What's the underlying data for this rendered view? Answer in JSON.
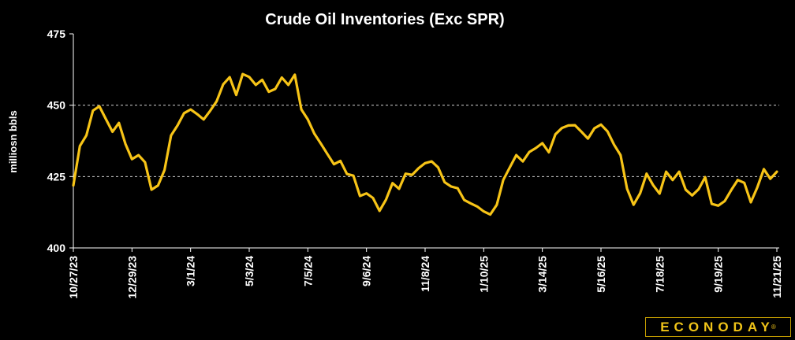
{
  "chart_data": {
    "type": "line",
    "title": "Crude Oil Inventories (Exc SPR)",
    "xlabel": "",
    "ylabel": "milliosn bbls",
    "ylim": [
      400,
      475
    ],
    "yticks": [
      400,
      425,
      450,
      475
    ],
    "gridlines": [
      425,
      450
    ],
    "grid": "dashed horizontal at 425 and 450",
    "legend": "none",
    "xtick_labels": [
      "10/27/23",
      "12/29/23",
      "3/1/24",
      "5/3/24",
      "7/5/24",
      "9/6/24",
      "11/8/24",
      "1/10/25",
      "3/14/25",
      "5/16/25",
      "7/18/25",
      "9/19/25",
      "11/21/25"
    ],
    "colors": {
      "background": "#000000",
      "line": "#f7c417",
      "axis": "#ffffff",
      "grid": "#cfcfcf"
    },
    "series": [
      {
        "values": [
          421.9,
          435.7,
          439.4,
          448.1,
          449.6,
          445.1,
          440.7,
          443.8,
          436.4,
          431.1,
          432.5,
          430.0,
          420.4,
          421.9,
          427.3,
          439.4,
          442.9,
          447.2,
          448.5,
          446.9,
          445.0,
          448.0,
          451.4,
          457.3,
          459.8,
          453.6,
          460.9,
          459.9,
          457.1,
          458.9,
          454.7,
          455.7,
          459.7,
          457.1,
          460.7,
          448.5,
          445.0,
          440.0,
          436.5,
          432.9,
          429.3,
          430.5,
          425.9,
          425.3,
          418.2,
          419.1,
          417.5,
          413.0,
          416.9,
          422.7,
          420.7,
          426.0,
          425.6,
          427.9,
          429.7,
          430.3,
          428.2,
          423.0,
          421.5,
          420.9,
          416.8,
          415.6,
          414.5,
          412.8,
          411.7,
          415.1,
          423.8,
          428.2,
          432.5,
          430.3,
          433.6,
          435.0,
          436.7,
          433.5,
          439.8,
          442.0,
          442.9,
          443.0,
          440.7,
          438.3,
          441.9,
          443.2,
          440.8,
          436.2,
          432.5,
          420.8,
          415.1,
          419.1,
          426.0,
          422.0,
          419.0,
          426.7,
          423.8,
          426.7,
          420.4,
          418.4,
          420.6,
          424.8,
          415.4,
          414.8,
          416.4,
          420.3,
          423.8,
          422.8,
          416.0,
          421.2,
          427.6,
          424.2,
          426.7
        ]
      }
    ]
  },
  "brand": {
    "logo_text": "ECONODAY",
    "trademark": "®"
  }
}
